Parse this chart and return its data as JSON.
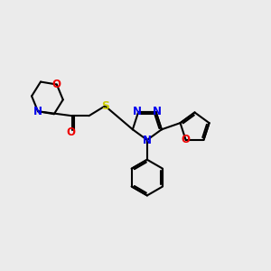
{
  "background_color": "#ebebeb",
  "bond_color": "#000000",
  "atom_colors": {
    "N": "#0000ee",
    "O": "#ee0000",
    "S": "#cccc00",
    "C": "#000000"
  },
  "figsize": [
    3.0,
    3.0
  ],
  "dpi": 100,
  "lw": 1.5,
  "fs": 8.5
}
